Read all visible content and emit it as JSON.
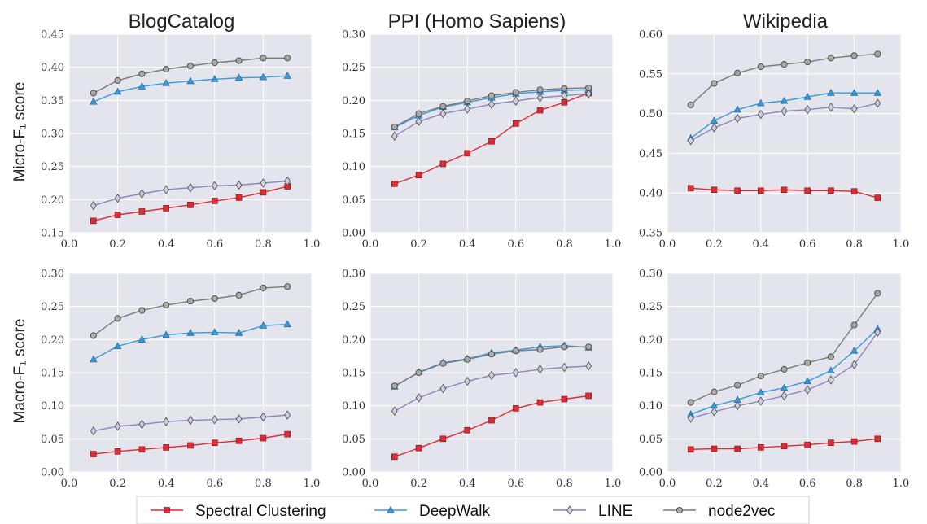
{
  "figure": {
    "titles": [
      "BlogCatalog",
      "PPI (Homo Sapiens)",
      "Wikipedia"
    ],
    "row_ylabels": [
      "Micro-F₁ score",
      "Macro-F₁ score"
    ],
    "legend": [
      {
        "name": "Spectral Clustering",
        "color": "#dd2c35",
        "marker": "square"
      },
      {
        "name": "DeepWalk",
        "color": "#3a9ad9",
        "marker": "triangle"
      },
      {
        "name": "LINE",
        "color": "#8a86bb",
        "marker": "diamond"
      },
      {
        "name": "node2vec",
        "color": "#7a7a7a",
        "marker": "circle"
      }
    ]
  },
  "chart_data": [
    {
      "type": "line",
      "title": "BlogCatalog",
      "ylabel": "Micro-F₁ score",
      "x": [
        0.1,
        0.2,
        0.3,
        0.4,
        0.5,
        0.6,
        0.7,
        0.8,
        0.9
      ],
      "xlim": [
        0.0,
        1.0
      ],
      "ylim": [
        0.15,
        0.45
      ],
      "xticks": [
        "0.0",
        "0.2",
        "0.4",
        "0.6",
        "0.8",
        "1.0"
      ],
      "yticks": [
        "0.15",
        "0.20",
        "0.25",
        "0.30",
        "0.35",
        "0.40",
        "0.45"
      ],
      "series": [
        {
          "name": "Spectral Clustering",
          "values": [
            0.168,
            0.177,
            0.182,
            0.187,
            0.192,
            0.198,
            0.203,
            0.211,
            0.22
          ]
        },
        {
          "name": "DeepWalk",
          "values": [
            0.348,
            0.363,
            0.371,
            0.376,
            0.379,
            0.382,
            0.384,
            0.385,
            0.387
          ]
        },
        {
          "name": "LINE",
          "values": [
            0.191,
            0.202,
            0.209,
            0.215,
            0.218,
            0.221,
            0.222,
            0.225,
            0.228
          ]
        },
        {
          "name": "node2vec",
          "values": [
            0.361,
            0.38,
            0.39,
            0.397,
            0.402,
            0.407,
            0.41,
            0.414,
            0.414
          ]
        }
      ]
    },
    {
      "type": "line",
      "title": "PPI (Homo Sapiens)",
      "ylabel": "",
      "x": [
        0.1,
        0.2,
        0.3,
        0.4,
        0.5,
        0.6,
        0.7,
        0.8,
        0.9
      ],
      "xlim": [
        0.0,
        1.0
      ],
      "ylim": [
        0.0,
        0.3
      ],
      "xticks": [
        "0.0",
        "0.2",
        "0.4",
        "0.6",
        "0.8",
        "1.0"
      ],
      "yticks": [
        "0.00",
        "0.05",
        "0.10",
        "0.15",
        "0.20",
        "0.25",
        "0.30"
      ],
      "series": [
        {
          "name": "Spectral Clustering",
          "values": [
            0.074,
            0.087,
            0.104,
            0.12,
            0.138,
            0.165,
            0.185,
            0.197,
            0.211
          ]
        },
        {
          "name": "DeepWalk",
          "values": [
            0.159,
            0.177,
            0.19,
            0.197,
            0.204,
            0.21,
            0.213,
            0.215,
            0.216
          ]
        },
        {
          "name": "LINE",
          "values": [
            0.146,
            0.168,
            0.18,
            0.187,
            0.194,
            0.199,
            0.204,
            0.207,
            0.21
          ]
        },
        {
          "name": "node2vec",
          "values": [
            0.16,
            0.18,
            0.191,
            0.199,
            0.207,
            0.212,
            0.216,
            0.218,
            0.219
          ]
        }
      ]
    },
    {
      "type": "line",
      "title": "Wikipedia",
      "ylabel": "",
      "x": [
        0.1,
        0.2,
        0.3,
        0.4,
        0.5,
        0.6,
        0.7,
        0.8,
        0.9
      ],
      "xlim": [
        0.0,
        1.0
      ],
      "ylim": [
        0.35,
        0.6
      ],
      "xticks": [
        "0.0",
        "0.2",
        "0.4",
        "0.6",
        "0.8",
        "1.0"
      ],
      "yticks": [
        "0.35",
        "0.40",
        "0.45",
        "0.50",
        "0.55",
        "0.60"
      ],
      "series": [
        {
          "name": "Spectral Clustering",
          "values": [
            0.406,
            0.404,
            0.403,
            0.403,
            0.404,
            0.403,
            0.403,
            0.402,
            0.394
          ]
        },
        {
          "name": "DeepWalk",
          "values": [
            0.469,
            0.491,
            0.505,
            0.513,
            0.516,
            0.521,
            0.526,
            0.526,
            0.526
          ]
        },
        {
          "name": "LINE",
          "values": [
            0.466,
            0.482,
            0.494,
            0.499,
            0.503,
            0.505,
            0.508,
            0.506,
            0.513
          ]
        },
        {
          "name": "node2vec",
          "values": [
            0.511,
            0.538,
            0.551,
            0.559,
            0.562,
            0.565,
            0.57,
            0.573,
            0.575
          ]
        }
      ]
    },
    {
      "type": "line",
      "title": "",
      "ylabel": "Macro-F₁ score",
      "x": [
        0.1,
        0.2,
        0.3,
        0.4,
        0.5,
        0.6,
        0.7,
        0.8,
        0.9
      ],
      "xlim": [
        0.0,
        1.0
      ],
      "ylim": [
        0.0,
        0.3
      ],
      "xticks": [
        "0.0",
        "0.2",
        "0.4",
        "0.6",
        "0.8",
        "1.0"
      ],
      "yticks": [
        "0.00",
        "0.05",
        "0.10",
        "0.15",
        "0.20",
        "0.25",
        "0.30"
      ],
      "series": [
        {
          "name": "Spectral Clustering",
          "values": [
            0.027,
            0.031,
            0.034,
            0.037,
            0.04,
            0.044,
            0.047,
            0.051,
            0.057
          ]
        },
        {
          "name": "DeepWalk",
          "values": [
            0.17,
            0.19,
            0.2,
            0.207,
            0.21,
            0.211,
            0.21,
            0.221,
            0.223
          ]
        },
        {
          "name": "LINE",
          "values": [
            0.062,
            0.069,
            0.072,
            0.076,
            0.078,
            0.079,
            0.08,
            0.083,
            0.086
          ]
        },
        {
          "name": "node2vec",
          "values": [
            0.206,
            0.232,
            0.244,
            0.252,
            0.258,
            0.262,
            0.267,
            0.278,
            0.28
          ]
        }
      ]
    },
    {
      "type": "line",
      "title": "",
      "ylabel": "",
      "x": [
        0.1,
        0.2,
        0.3,
        0.4,
        0.5,
        0.6,
        0.7,
        0.8,
        0.9
      ],
      "xlim": [
        0.0,
        1.0
      ],
      "ylim": [
        0.0,
        0.3
      ],
      "xticks": [
        "0.0",
        "0.2",
        "0.4",
        "0.6",
        "0.8",
        "1.0"
      ],
      "yticks": [
        "0.00",
        "0.05",
        "0.10",
        "0.15",
        "0.20",
        "0.25",
        "0.30"
      ],
      "series": [
        {
          "name": "Spectral Clustering",
          "values": [
            0.023,
            0.036,
            0.05,
            0.063,
            0.078,
            0.096,
            0.105,
            0.11,
            0.115
          ]
        },
        {
          "name": "DeepWalk",
          "values": [
            0.129,
            0.151,
            0.165,
            0.171,
            0.18,
            0.184,
            0.189,
            0.191,
            0.188
          ]
        },
        {
          "name": "LINE",
          "values": [
            0.092,
            0.112,
            0.126,
            0.137,
            0.146,
            0.15,
            0.155,
            0.158,
            0.16
          ]
        },
        {
          "name": "node2vec",
          "values": [
            0.13,
            0.15,
            0.164,
            0.17,
            0.178,
            0.183,
            0.185,
            0.189,
            0.189
          ]
        }
      ]
    },
    {
      "type": "line",
      "title": "",
      "ylabel": "",
      "x": [
        0.1,
        0.2,
        0.3,
        0.4,
        0.5,
        0.6,
        0.7,
        0.8,
        0.9
      ],
      "xlim": [
        0.0,
        1.0
      ],
      "ylim": [
        0.0,
        0.3
      ],
      "xticks": [
        "0.0",
        "0.2",
        "0.4",
        "0.6",
        "0.8",
        "1.0"
      ],
      "yticks": [
        "0.00",
        "0.05",
        "0.10",
        "0.15",
        "0.20",
        "0.25",
        "0.30"
      ],
      "series": [
        {
          "name": "Spectral Clustering",
          "values": [
            0.034,
            0.035,
            0.035,
            0.037,
            0.039,
            0.041,
            0.044,
            0.046,
            0.05
          ]
        },
        {
          "name": "DeepWalk",
          "values": [
            0.087,
            0.1,
            0.109,
            0.12,
            0.127,
            0.137,
            0.153,
            0.183,
            0.216
          ]
        },
        {
          "name": "LINE",
          "values": [
            0.081,
            0.091,
            0.1,
            0.107,
            0.115,
            0.124,
            0.139,
            0.162,
            0.211
          ]
        },
        {
          "name": "node2vec",
          "values": [
            0.105,
            0.121,
            0.131,
            0.145,
            0.155,
            0.165,
            0.174,
            0.222,
            0.27
          ]
        }
      ]
    }
  ]
}
